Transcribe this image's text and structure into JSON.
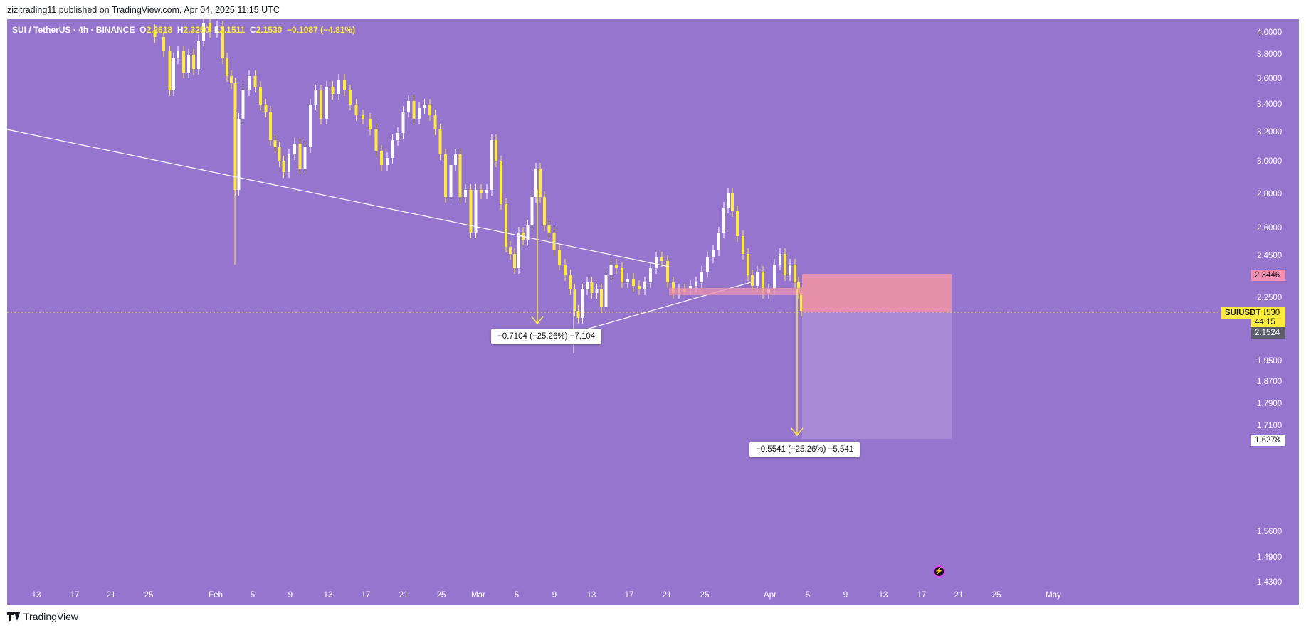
{
  "header": {
    "published": "zizitrading11 published on TradingView.com, Apr 04, 2025 11:15 UTC"
  },
  "legend": {
    "symbol": "SUI / TetherUS · 4h · BINANCE",
    "o_label": "O",
    "o": "2.2618",
    "h_label": "H",
    "h": "2.3250",
    "l_label": "L",
    "l": "2.1511",
    "c_label": "C",
    "c": "2.1530",
    "change": "−0.1087 (−4.81%)"
  },
  "price_axis": {
    "ticks": [
      "4.0000",
      "3.8000",
      "3.6000",
      "3.4000",
      "3.2000",
      "3.0000",
      "2.8000",
      "2.6000",
      "2.4500",
      "2.2500",
      "1.9500",
      "1.8700",
      "1.7900",
      "1.7100",
      "1.5600",
      "1.4900",
      "1.4300"
    ]
  },
  "time_axis": {
    "ticks": [
      "13",
      "17",
      "21",
      "25",
      "Feb",
      "5",
      "9",
      "13",
      "17",
      "21",
      "25",
      "Mar",
      "5",
      "9",
      "13",
      "17",
      "21",
      "25",
      "Apr",
      "5",
      "9",
      "13",
      "17",
      "21",
      "25",
      "May"
    ]
  },
  "tags": {
    "stop": "2.3446",
    "symbol": "SUIUSDT",
    "price": "2.1530",
    "countdown": "44:15",
    "prev": "2.1524",
    "target": "1.6278"
  },
  "measures": {
    "first": "−0.7104 (−25.26%) −7,104",
    "second": "−0.5541 (−25.26%) −5,541"
  },
  "footer": {
    "brand": "TradingView"
  },
  "colors": {
    "background": "#9575cd",
    "candle_up": "#ffffff",
    "candle_down": "#ffeb3b",
    "stop_zone": "#e991a8",
    "target_zone": "#a98ad6"
  }
}
